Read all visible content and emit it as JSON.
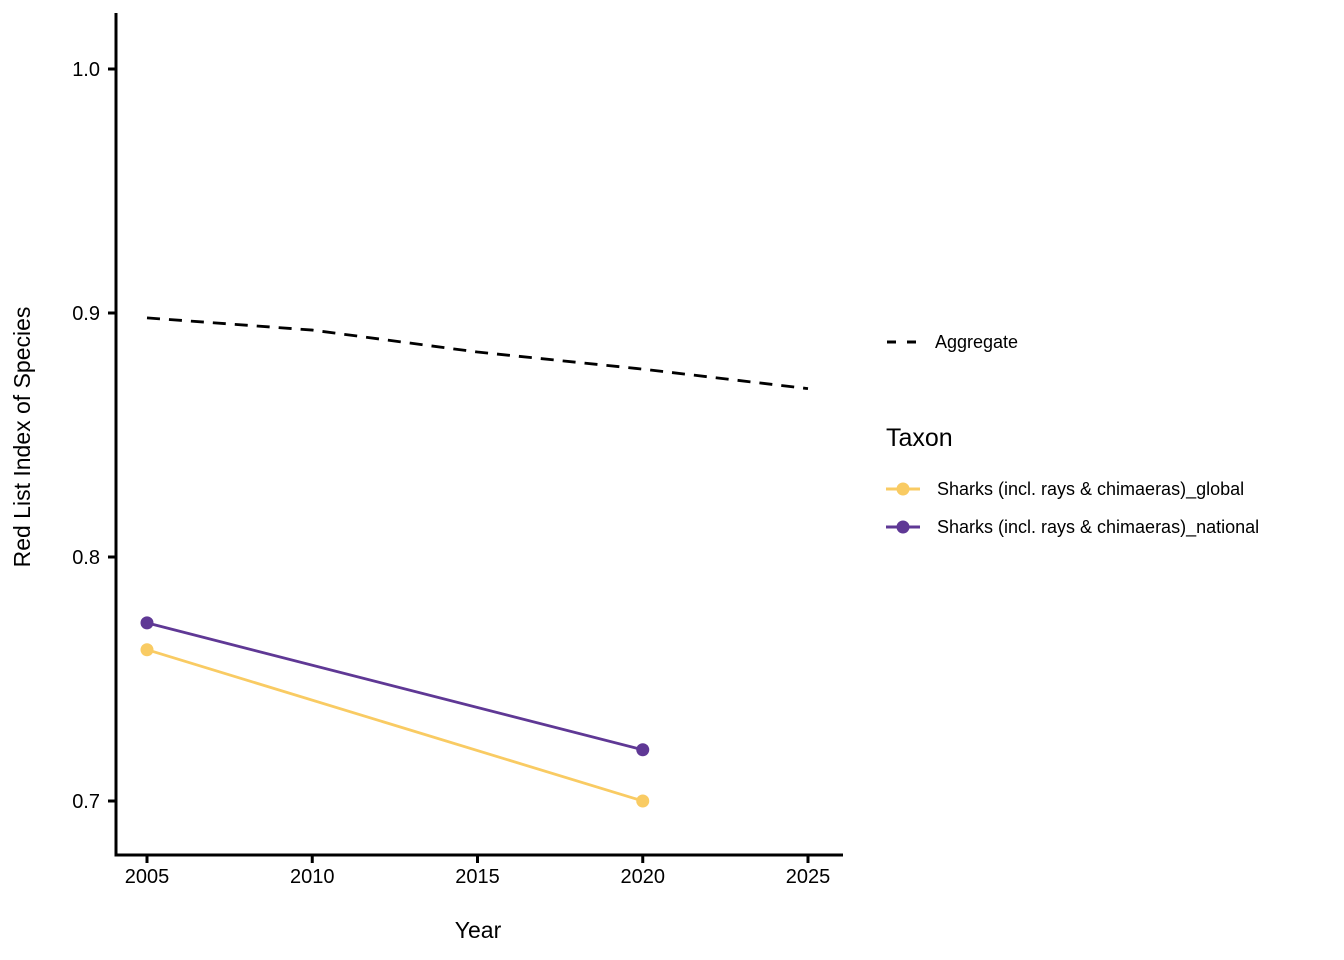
{
  "chart_data": {
    "type": "line",
    "title": "",
    "xlabel": "Year",
    "ylabel": "Red List Index of Species",
    "grid": "off",
    "legend_position": "right",
    "legend_title": "Taxon",
    "xlim": [
      2004.1,
      2026.1
    ],
    "ylim": [
      0.678,
      1.023
    ],
    "x_ticks": [
      {
        "value": 2005,
        "label": "2005"
      },
      {
        "value": 2010,
        "label": "2010"
      },
      {
        "value": 2015,
        "label": "2015"
      },
      {
        "value": 2020,
        "label": "2020"
      },
      {
        "value": 2025,
        "label": "2025"
      }
    ],
    "y_ticks": [
      {
        "value": 0.7,
        "label": "0.7"
      },
      {
        "value": 0.8,
        "label": "0.8"
      },
      {
        "value": 0.9,
        "label": "0.9"
      },
      {
        "value": 1.0,
        "label": "1.0"
      }
    ],
    "series": [
      {
        "name": "Aggregate",
        "linestyle": "dashed",
        "color": "#000000",
        "marker": false,
        "x": [
          2005,
          2010,
          2015,
          2020,
          2025
        ],
        "values": [
          0.898,
          0.893,
          0.884,
          0.877,
          0.869
        ]
      },
      {
        "name": "Sharks (incl. rays & chimaeras)_global",
        "linestyle": "solid",
        "color": "#F9CB63",
        "marker": true,
        "x": [
          2005,
          2020
        ],
        "values": [
          0.762,
          0.7
        ]
      },
      {
        "name": "Sharks (incl. rays & chimaeras)_national",
        "linestyle": "solid",
        "color": "#5F3895",
        "marker": true,
        "x": [
          2005,
          2020
        ],
        "values": [
          0.773,
          0.721
        ]
      }
    ]
  }
}
